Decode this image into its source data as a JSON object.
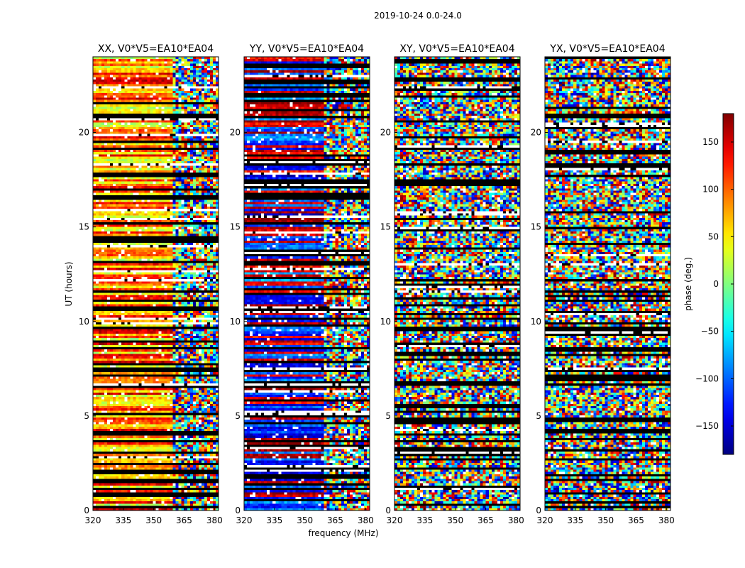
{
  "figure_title": "2019-10-24 0.0-24.0",
  "chart_data": {
    "type": "heatmap",
    "title": "2019-10-24 0.0-24.0",
    "xlabel": "frequency (MHz)",
    "ylabel": "UT (hours)",
    "xlim": [
      320,
      382
    ],
    "ylim": [
      0,
      24
    ],
    "xticks": [
      320,
      335,
      350,
      365,
      380
    ],
    "yticks": [
      0,
      5,
      10,
      15,
      20
    ],
    "panels": [
      {
        "title": "XX, V0*V5=EA10*EA04",
        "product": "XX"
      },
      {
        "title": "YY, V0*V5=EA10*EA04",
        "product": "YY"
      },
      {
        "title": "XY, V0*V5=EA10*EA04",
        "product": "XY"
      },
      {
        "title": "YX, V0*V5=EA10*EA04",
        "product": "YX"
      }
    ],
    "colorbar": {
      "label": "phase (deg.)",
      "range": [
        -180,
        180
      ],
      "ticks": [
        -150,
        -100,
        -50,
        0,
        50,
        100,
        150
      ],
      "colormap": "jet"
    }
  }
}
